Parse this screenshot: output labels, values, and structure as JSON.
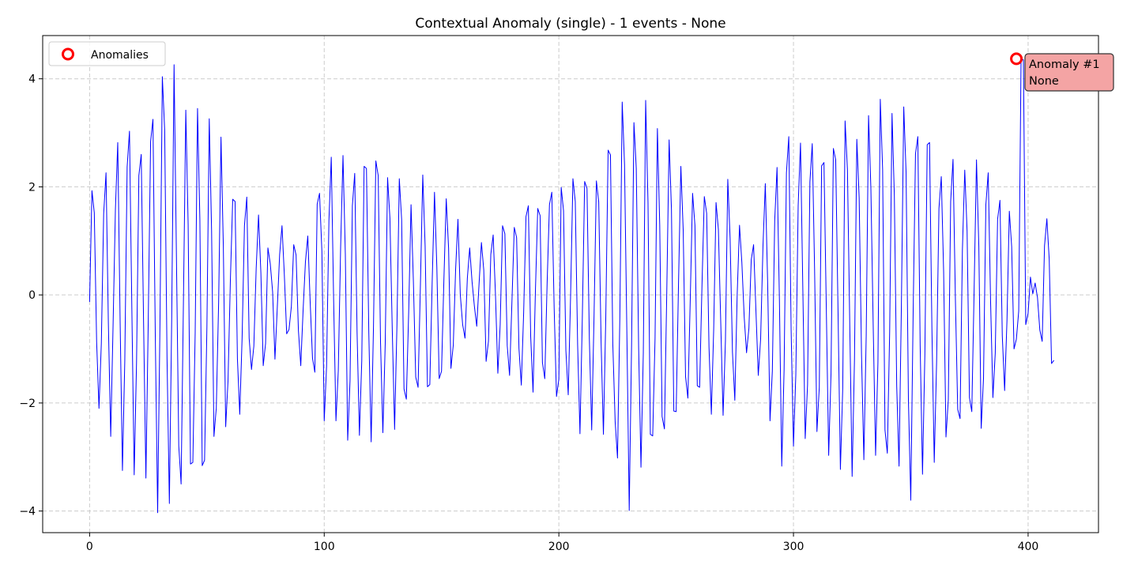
{
  "chart_data": {
    "type": "line",
    "title": "Contextual Anomaly (single) - 1 events - None",
    "xlabel": "",
    "ylabel": "",
    "xlim": [
      -20,
      430
    ],
    "ylim": [
      -4.4,
      4.8
    ],
    "xticks": [
      0,
      100,
      200,
      300,
      400
    ],
    "yticks": [
      -4,
      -2,
      0,
      2,
      4
    ],
    "grid": true,
    "legend_position": "top-left",
    "series": [
      {
        "name": "",
        "color": "#0000ff",
        "x_start": 0,
        "x_step": 1,
        "values": [
          -0.13,
          1.93,
          1.52,
          -0.87,
          -2.1,
          -0.9,
          1.5,
          2.26,
          -0.53,
          -2.62,
          -0.57,
          1.58,
          2.82,
          -0.46,
          -3.25,
          -1.22,
          2.37,
          3.03,
          -0.24,
          -3.33,
          -1.26,
          2.21,
          2.6,
          -0.49,
          -3.39,
          -0.47,
          2.84,
          3.25,
          -0.76,
          -4.03,
          -0.5,
          4.04,
          3.05,
          -1.17,
          -3.86,
          -0.41,
          4.26,
          0.73,
          -2.79,
          -3.5,
          -0.11,
          3.42,
          1.3,
          -3.13,
          -3.1,
          -0.7,
          3.45,
          1.39,
          -3.16,
          -3.06,
          -0.59,
          3.26,
          1.18,
          -2.62,
          -2.09,
          -0.13,
          2.92,
          0.9,
          -2.44,
          -1.59,
          0.27,
          1.77,
          1.73,
          -1.18,
          -2.21,
          -0.79,
          1.28,
          1.81,
          -0.8,
          -1.38,
          -0.95,
          0.49,
          1.48,
          0.41,
          -1.31,
          -0.9,
          0.87,
          0.58,
          0.06,
          -1.19,
          -0.23,
          0.75,
          1.28,
          0.37,
          -0.72,
          -0.64,
          -0.21,
          0.93,
          0.74,
          -0.66,
          -1.31,
          -0.28,
          0.62,
          1.09,
          -0.12,
          -1.17,
          -1.43,
          1.68,
          1.88,
          0.81,
          -2.33,
          -1.32,
          1.37,
          2.55,
          -0.07,
          -2.33,
          -1.4,
          0.9,
          2.58,
          0.75,
          -2.69,
          -1.59,
          1.65,
          2.25,
          -0.69,
          -2.6,
          -1.22,
          2.38,
          2.34,
          -0.7,
          -2.72,
          -0.58,
          2.48,
          2.21,
          -0.88,
          -2.55,
          -0.9,
          2.17,
          1.42,
          -0.64,
          -2.49,
          -0.55,
          2.15,
          1.39,
          -1.74,
          -1.93,
          -0.31,
          1.67,
          0.26,
          -1.52,
          -1.71,
          0.19,
          2.22,
          0.91,
          -1.7,
          -1.66,
          0.22,
          1.9,
          0.51,
          -1.55,
          -1.41,
          0.27,
          1.78,
          0.87,
          -1.36,
          -0.93,
          0.47,
          1.4,
          0.0,
          -0.55,
          -0.8,
          0.31,
          0.87,
          0.25,
          -0.21,
          -0.58,
          0.21,
          0.97,
          0.46,
          -1.23,
          -0.86,
          0.75,
          1.11,
          -0.01,
          -1.45,
          -0.55,
          1.28,
          1.13,
          -0.94,
          -1.49,
          -0.13,
          1.25,
          1.06,
          -0.99,
          -1.67,
          -0.33,
          1.45,
          1.65,
          -0.77,
          -1.8,
          0.05,
          1.6,
          1.47,
          -1.25,
          -1.55,
          0.21,
          1.67,
          1.9,
          -0.24,
          -1.88,
          -1.56,
          1.99,
          1.56,
          -1.03,
          -1.85,
          -0.02,
          2.15,
          1.73,
          -0.92,
          -2.57,
          -0.44,
          2.1,
          1.97,
          -0.81,
          -2.5,
          -0.39,
          2.11,
          1.72,
          -0.87,
          -2.58,
          -0.43,
          2.68,
          2.59,
          -0.91,
          -2.35,
          -3.02,
          -0.4,
          3.57,
          2.41,
          -0.73,
          -3.99,
          -0.92,
          3.19,
          2.34,
          -0.96,
          -3.19,
          -1.07,
          3.6,
          1.71,
          -2.58,
          -2.61,
          -0.81,
          3.08,
          1.29,
          -2.25,
          -2.48,
          0.05,
          2.87,
          1.58,
          -2.15,
          -2.16,
          0.2,
          2.38,
          1.2,
          -1.51,
          -1.91,
          -0.1,
          1.88,
          1.29,
          -1.68,
          -1.71,
          0.17,
          1.82,
          1.51,
          -0.97,
          -2.21,
          -0.63,
          1.71,
          1.21,
          -0.51,
          -2.23,
          -0.85,
          2.14,
          1.04,
          -1.06,
          -1.95,
          -0.01,
          1.29,
          0.6,
          -0.41,
          -1.07,
          -0.62,
          0.65,
          0.93,
          -0.29,
          -1.49,
          -0.82,
          0.9,
          2.06,
          0.21,
          -2.33,
          -1.41,
          1.37,
          2.36,
          -0.07,
          -3.17,
          -1.39,
          2.26,
          2.93,
          -0.65,
          -2.8,
          -1.48,
          1.65,
          2.81,
          0.08,
          -2.66,
          -1.66,
          2.09,
          2.8,
          0.48,
          -2.53,
          -1.71,
          2.39,
          2.45,
          -0.27,
          -2.97,
          -1.46,
          2.71,
          2.5,
          -0.32,
          -3.23,
          -1.72,
          3.22,
          2.32,
          -0.57,
          -3.36,
          -1.2,
          2.88,
          1.8,
          -1.1,
          -3.05,
          -0.75,
          3.32,
          1.96,
          -0.62,
          -2.97,
          -1.25,
          3.62,
          2.32,
          -2.5,
          -2.93,
          -0.68,
          3.36,
          1.82,
          -1.69,
          -3.17,
          -0.18,
          3.48,
          2.26,
          -1.97,
          -3.8,
          -0.35,
          2.61,
          2.93,
          -0.94,
          -3.32,
          -1.1,
          2.78,
          2.82,
          -0.62,
          -3.1,
          -1.25,
          1.6,
          2.19,
          0.43,
          -2.63,
          -1.94,
          1.73,
          2.51,
          -0.05,
          -2.12,
          -2.29,
          0.83,
          2.31,
          1.18,
          -1.9,
          -2.16,
          0.1,
          2.5,
          0.9,
          -2.47,
          -1.54,
          1.67,
          2.26,
          -0.1,
          -1.9,
          -1.08,
          1.4,
          1.75,
          -0.76,
          -1.77,
          -0.47,
          1.55,
          0.89,
          -1.0,
          -0.82,
          -0.3,
          4.37,
          4.35,
          -0.55,
          -0.34,
          0.33,
          0.02,
          0.22,
          -0.05,
          -0.65,
          -0.86,
          0.91,
          1.41,
          0.66,
          -1.27,
          -1.21
        ]
      }
    ],
    "anomalies": [
      {
        "x": 395,
        "y": 4.37,
        "label_line1": "Anomaly #1",
        "label_line2": "None"
      }
    ],
    "legend": [
      {
        "label": "Anomalies",
        "marker": "circle-open",
        "color": "#ff0000"
      }
    ],
    "colors": {
      "line": "#0000ff",
      "anomaly_marker": "#ff0000",
      "annotation_fill": "#f4a4a4",
      "grid": "#cccccc"
    }
  }
}
